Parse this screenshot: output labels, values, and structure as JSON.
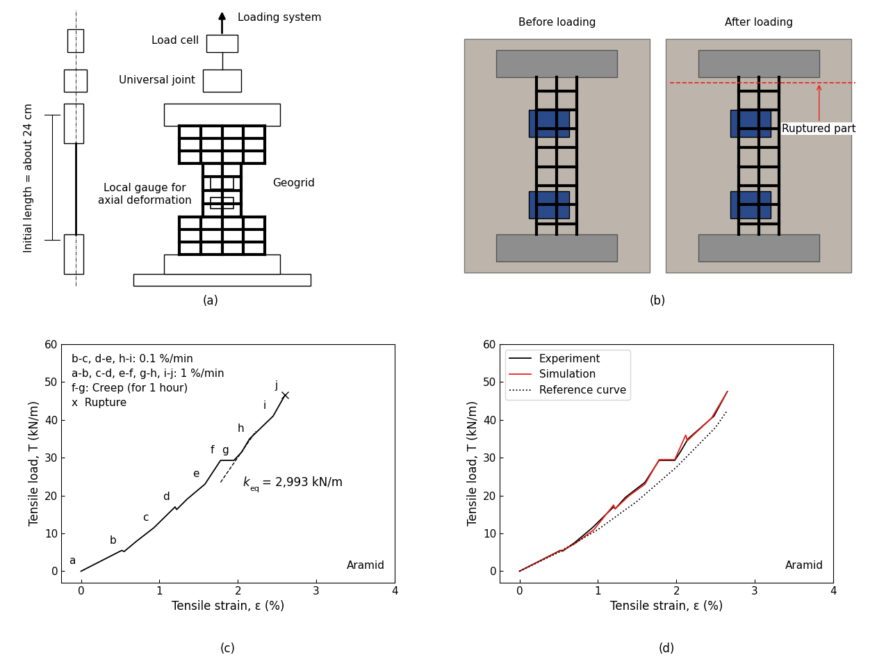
{
  "diagram": {
    "label": "(a)",
    "loading_system": "Loading system",
    "load_cell": "Load cell",
    "universal_joint": "Universal joint",
    "local_gauge": "Local gauge for\naxial deformation",
    "geogrid": "Geogrid",
    "initial_length": "Initial length = about 24 cm"
  },
  "photos": {
    "label": "(b)",
    "before": "Before loading",
    "after": "After loading",
    "rupture": "Ruptured part"
  },
  "chart_data": [
    {
      "type": "line",
      "label": "(c)",
      "x_label": "Tensile strain, ε (%)",
      "y_label": "Tensile load, T (kN/m)",
      "xlim": [
        -0.25,
        4
      ],
      "ylim": [
        -3,
        60
      ],
      "xticks": [
        0,
        1,
        2,
        3,
        4
      ],
      "yticks": [
        0,
        10,
        20,
        30,
        40,
        50,
        60
      ],
      "notes": [
        "b-c, d-e, h-i: 0.1 %/min",
        "a-b, c-d, e-f, g-h, i-j: 1 %/min",
        "f-g: Creep (for 1 hour)",
        "x  Rupture"
      ],
      "material": "Aramid",
      "series": [
        {
          "color": "#000000",
          "line_style": "solid",
          "x": [
            0,
            0.52,
            0.55,
            0.7,
            0.93,
            1.2,
            1.22,
            1.35,
            1.58,
            1.78,
            1.95,
            2.05,
            2.15,
            2.45,
            2.6
          ],
          "values": [
            0,
            5.5,
            5.2,
            7.8,
            11.5,
            17,
            16.3,
            19,
            23,
            29.3,
            29.3,
            31.5,
            35,
            41,
            46.5
          ],
          "point_labels": [
            "a",
            "b",
            null,
            null,
            "c",
            "d",
            null,
            null,
            "e",
            "f",
            "g",
            null,
            "h",
            "i",
            "j"
          ]
        }
      ],
      "rupture": {
        "index": 14,
        "marker": "x"
      },
      "tangent": {
        "x": [
          1.78,
          2.23
        ],
        "values": [
          23.5,
          37.0
        ],
        "line_style": "dashed",
        "symbol": "k",
        "subscript": "eq",
        "text": "= 2,993 kN/m"
      }
    },
    {
      "type": "line",
      "label": "(d)",
      "x_label": "Tensile strain, ε (%)",
      "y_label": "Tensile load, T (kN/m)",
      "xlim": [
        -0.25,
        4
      ],
      "ylim": [
        -3,
        60
      ],
      "xticks": [
        0,
        1,
        2,
        3,
        4
      ],
      "yticks": [
        0,
        10,
        20,
        30,
        40,
        50,
        60
      ],
      "legend": "upper left",
      "material": "Aramid",
      "series": [
        {
          "name": "Experiment",
          "color": "#000000",
          "line_style": "solid",
          "x": [
            0,
            0.52,
            0.55,
            0.7,
            0.93,
            1.2,
            1.22,
            1.35,
            1.6,
            1.78,
            1.98,
            2.05,
            2.15,
            2.48,
            2.65
          ],
          "values": [
            0,
            5.5,
            5.3,
            7.5,
            11.5,
            17,
            16.5,
            19.5,
            23.5,
            29.3,
            29.3,
            31.5,
            35,
            41,
            47.5
          ]
        },
        {
          "name": "Simulation",
          "color": "#e8221b",
          "line_style": "solid",
          "x": [
            0,
            0.5,
            0.55,
            0.7,
            0.95,
            1.2,
            1.22,
            1.4,
            1.6,
            1.78,
            1.98,
            2.12,
            2.14,
            2.45,
            2.65
          ],
          "values": [
            0,
            5.2,
            5.5,
            7.2,
            11,
            17.5,
            16.5,
            20,
            23,
            29.5,
            29.5,
            36,
            34.5,
            40.5,
            47.5
          ]
        },
        {
          "name": "Reference curve",
          "color": "#000000",
          "line_style": "dotted",
          "x": [
            0,
            0.5,
            1.0,
            1.5,
            2.0,
            2.5,
            2.65
          ],
          "values": [
            0,
            5,
            11,
            18.5,
            27.5,
            38,
            42.5
          ]
        }
      ]
    }
  ]
}
